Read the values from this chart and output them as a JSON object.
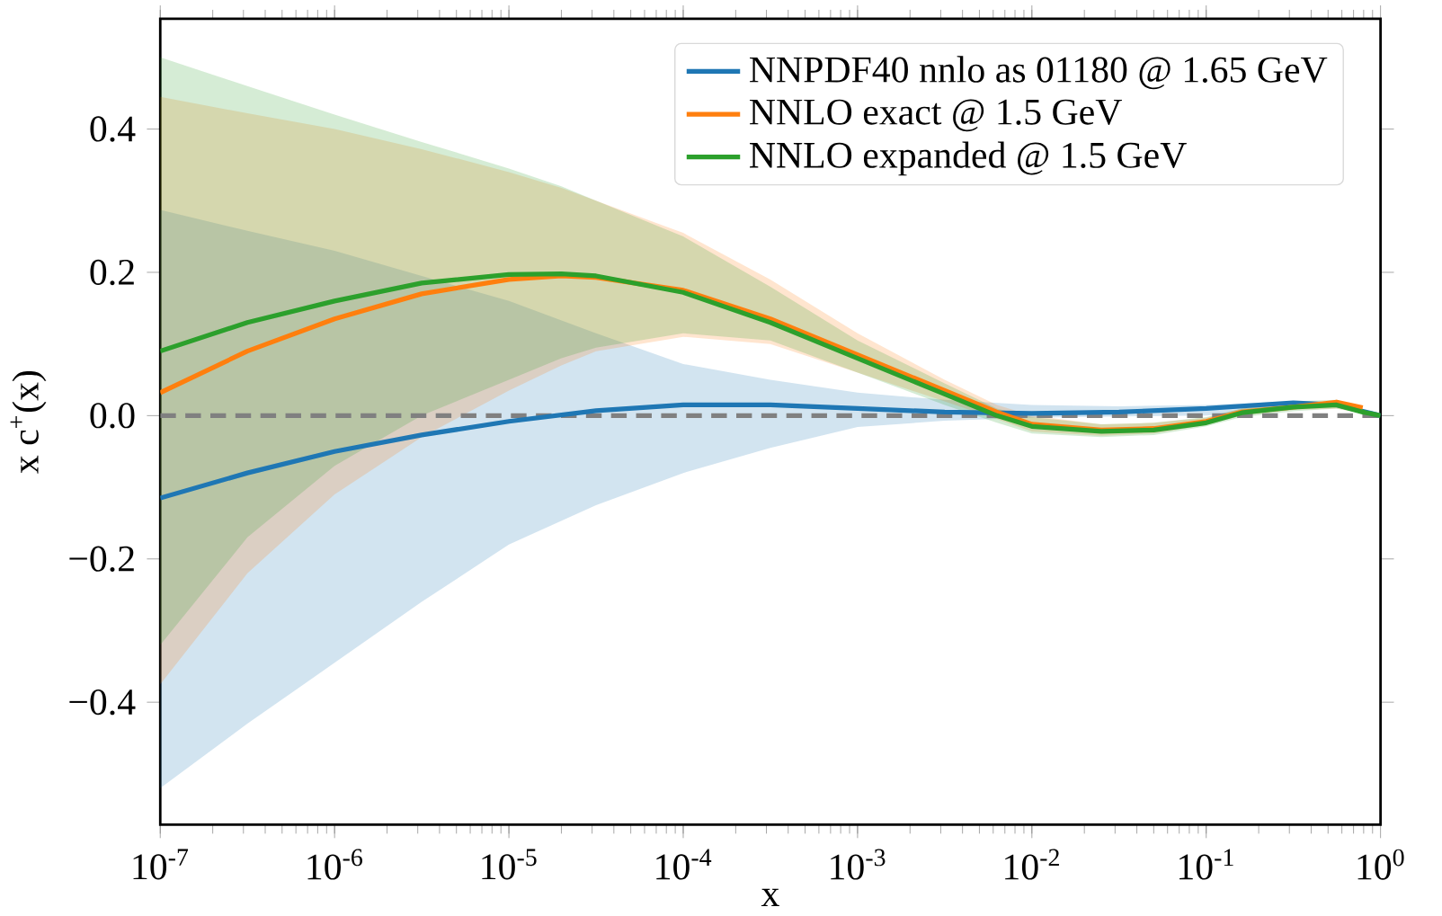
{
  "chart_data": {
    "type": "line",
    "xlabel": "x",
    "ylabel": "x c$^{+}$(x)",
    "log": "x",
    "legend": "top right",
    "grid": false,
    "xlim": [
      1e-07,
      1
    ],
    "ylim": [
      -0.571,
      0.554
    ],
    "xticks": [
      {
        "value": 1e-07,
        "label": "10$^{-7}$"
      },
      {
        "value": 1e-06,
        "label": "10$^{-6}$"
      },
      {
        "value": 1e-05,
        "label": "10$^{-5}$"
      },
      {
        "value": 0.0001,
        "label": "10$^{-4}$"
      },
      {
        "value": 0.001,
        "label": "10$^{-3}$"
      },
      {
        "value": 0.01,
        "label": "10$^{-2}$"
      },
      {
        "value": 0.1,
        "label": "10$^{-1}$"
      },
      {
        "value": 1,
        "label": "10$^{0}$"
      }
    ],
    "yticks": [
      {
        "value": -0.4,
        "label": "−0.4"
      },
      {
        "value": -0.2,
        "label": "−0.2"
      },
      {
        "value": 0,
        "label": "0.0"
      },
      {
        "value": 0.2,
        "label": "0.2"
      },
      {
        "value": 0.4,
        "label": "0.4"
      }
    ],
    "series": [
      {
        "name": "NNPDF40 nnlo as 01180 @ 1.65 GeV",
        "color": "#1f77b4",
        "x": [
          1e-07,
          3.16e-07,
          1e-06,
          3.16e-06,
          1e-05,
          3.16e-05,
          0.0001,
          0.000316,
          0.001,
          0.00316,
          0.01,
          0.0316,
          0.1,
          0.316,
          0.56,
          1
        ],
        "values": [
          -0.115,
          -0.08,
          -0.05,
          -0.027,
          -0.008,
          0.007,
          0.015,
          0.015,
          0.01,
          0.005,
          0.003,
          0.005,
          0.01,
          0.018,
          0.015,
          0
        ],
        "upper": [
          0.287,
          0.258,
          0.23,
          0.195,
          0.16,
          0.115,
          0.072,
          0.05,
          0.032,
          0.022,
          0.015,
          0.013,
          0.015,
          0.02,
          0.016,
          0
        ],
        "lower": [
          -0.52,
          -0.43,
          -0.345,
          -0.26,
          -0.18,
          -0.125,
          -0.08,
          -0.045,
          -0.016,
          -0.007,
          -0.003,
          -0.001,
          0.0,
          0.01,
          0.012,
          0
        ]
      },
      {
        "name": "NNLO exact @ 1.5 GeV",
        "color": "#ff7f0e",
        "x": [
          1e-07,
          3.16e-07,
          1e-06,
          3.16e-06,
          1e-05,
          2e-05,
          3.16e-05,
          0.0001,
          0.000316,
          0.001,
          0.00316,
          0.0063,
          0.01,
          0.025,
          0.05,
          0.1,
          0.16,
          0.316,
          0.56,
          0.79,
          1
        ],
        "values": [
          0.032,
          0.09,
          0.135,
          0.17,
          0.19,
          0.195,
          0.193,
          0.175,
          0.135,
          0.085,
          0.035,
          0.005,
          -0.012,
          -0.02,
          -0.018,
          -0.008,
          0.005,
          0.012,
          0.019,
          0.011,
          null
        ],
        "upper": [
          0.445,
          0.422,
          0.4,
          0.372,
          0.34,
          0.318,
          0.3,
          0.255,
          0.19,
          0.115,
          0.05,
          0.015,
          0.0,
          -0.012,
          -0.01,
          -0.003,
          0.01,
          0.018,
          0.02,
          0.008,
          0
        ],
        "lower": [
          -0.375,
          -0.22,
          -0.11,
          -0.03,
          0.035,
          0.07,
          0.09,
          0.11,
          0.1,
          0.06,
          0.02,
          -0.005,
          -0.022,
          -0.028,
          -0.025,
          -0.013,
          0.0,
          0.008,
          0.01,
          0.003,
          0
        ]
      },
      {
        "name": "NNLO expanded @ 1.5 GeV",
        "color": "#2ca02c",
        "x": [
          1e-07,
          3.16e-07,
          1e-06,
          3.16e-06,
          1e-05,
          2e-05,
          3.16e-05,
          0.0001,
          0.000316,
          0.001,
          0.00316,
          0.0063,
          0.01,
          0.025,
          0.05,
          0.1,
          0.16,
          0.316,
          0.56,
          0.79,
          1
        ],
        "values": [
          0.09,
          0.13,
          0.16,
          0.185,
          0.197,
          0.198,
          0.195,
          0.172,
          0.13,
          0.08,
          0.03,
          0.0,
          -0.015,
          -0.022,
          -0.02,
          -0.01,
          0.004,
          0.012,
          0.015,
          0.005,
          0
        ],
        "upper": [
          0.5,
          0.46,
          0.42,
          0.382,
          0.345,
          0.32,
          0.3,
          0.25,
          0.18,
          0.105,
          0.045,
          0.01,
          -0.002,
          -0.012,
          -0.01,
          -0.002,
          0.01,
          0.02,
          0.022,
          0.008,
          0
        ],
        "lower": [
          -0.32,
          -0.17,
          -0.07,
          0.0,
          0.05,
          0.08,
          0.095,
          0.115,
          0.105,
          0.06,
          0.015,
          -0.01,
          -0.025,
          -0.03,
          -0.027,
          -0.015,
          -0.002,
          0.006,
          0.01,
          0.003,
          0
        ]
      }
    ],
    "ref_lines": [
      {
        "axis": "y",
        "value": 0,
        "color": "#808080",
        "line_style": "dashed"
      }
    ]
  }
}
